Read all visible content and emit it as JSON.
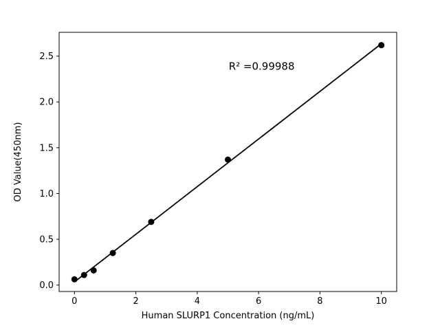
{
  "figure": {
    "background": "#ffffff",
    "foreground": "#000000"
  },
  "chart_data": {
    "type": "scatter",
    "title": "",
    "xlabel": "Human SLURP1 Concentration (ng/mL)",
    "ylabel": "OD Value(450nm)",
    "x": [
      0,
      0.313,
      0.625,
      1.25,
      2.5,
      5,
      10
    ],
    "y": [
      0.063,
      0.11,
      0.16,
      0.35,
      0.69,
      1.37,
      2.62
    ],
    "fit_line": true,
    "annotation": {
      "text": "R² =0.99988",
      "x": 6.1,
      "y": 2.35
    },
    "xlim": [
      -0.5,
      10.5
    ],
    "ylim": [
      -0.07,
      2.76
    ],
    "xticks": [
      0,
      2,
      4,
      6,
      8,
      10
    ],
    "xtick_labels": [
      "0",
      "2",
      "4",
      "6",
      "8",
      "10"
    ],
    "yticks": [
      0.0,
      0.5,
      1.0,
      1.5,
      2.0,
      2.5
    ],
    "ytick_labels": [
      "0.0",
      "0.5",
      "1.0",
      "1.5",
      "2.0",
      "2.5"
    ],
    "marker_color": "#000000",
    "line_color": "#000000",
    "grid": false,
    "legend": null
  }
}
